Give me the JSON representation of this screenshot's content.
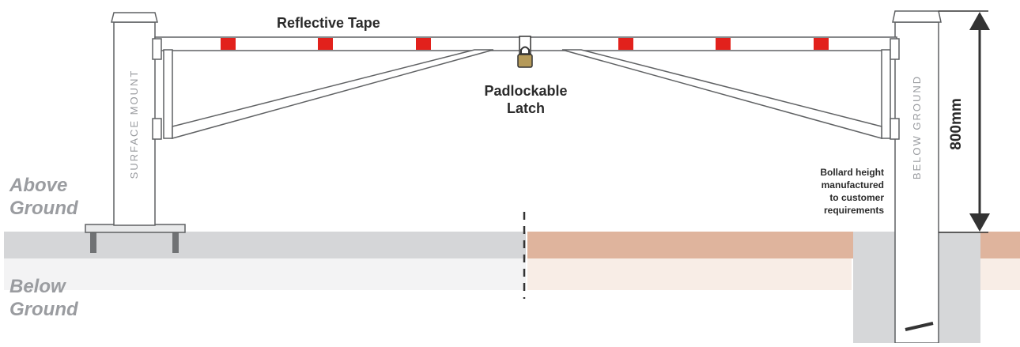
{
  "labels": {
    "reflective_tape": "Reflective Tape",
    "padlockable": "Padlockable",
    "latch": "Latch",
    "surface_mount": "SURFACE MOUNT",
    "below_ground_post": "BELOW GROUND",
    "dimension": "800mm",
    "bollard_note": [
      "Bollard height",
      "manufactured",
      "to customer",
      "requirements"
    ],
    "above_ground": [
      "Above",
      "Ground"
    ],
    "below_ground": [
      "Below",
      "Ground"
    ]
  },
  "colors": {
    "tape": "#e2211c",
    "ground_grey": "#d5d6d8",
    "ground_tan": "#dfb49d",
    "post_fill": "#ffffff",
    "outline": "#5f6163",
    "dimension_arrow": "#333333"
  }
}
